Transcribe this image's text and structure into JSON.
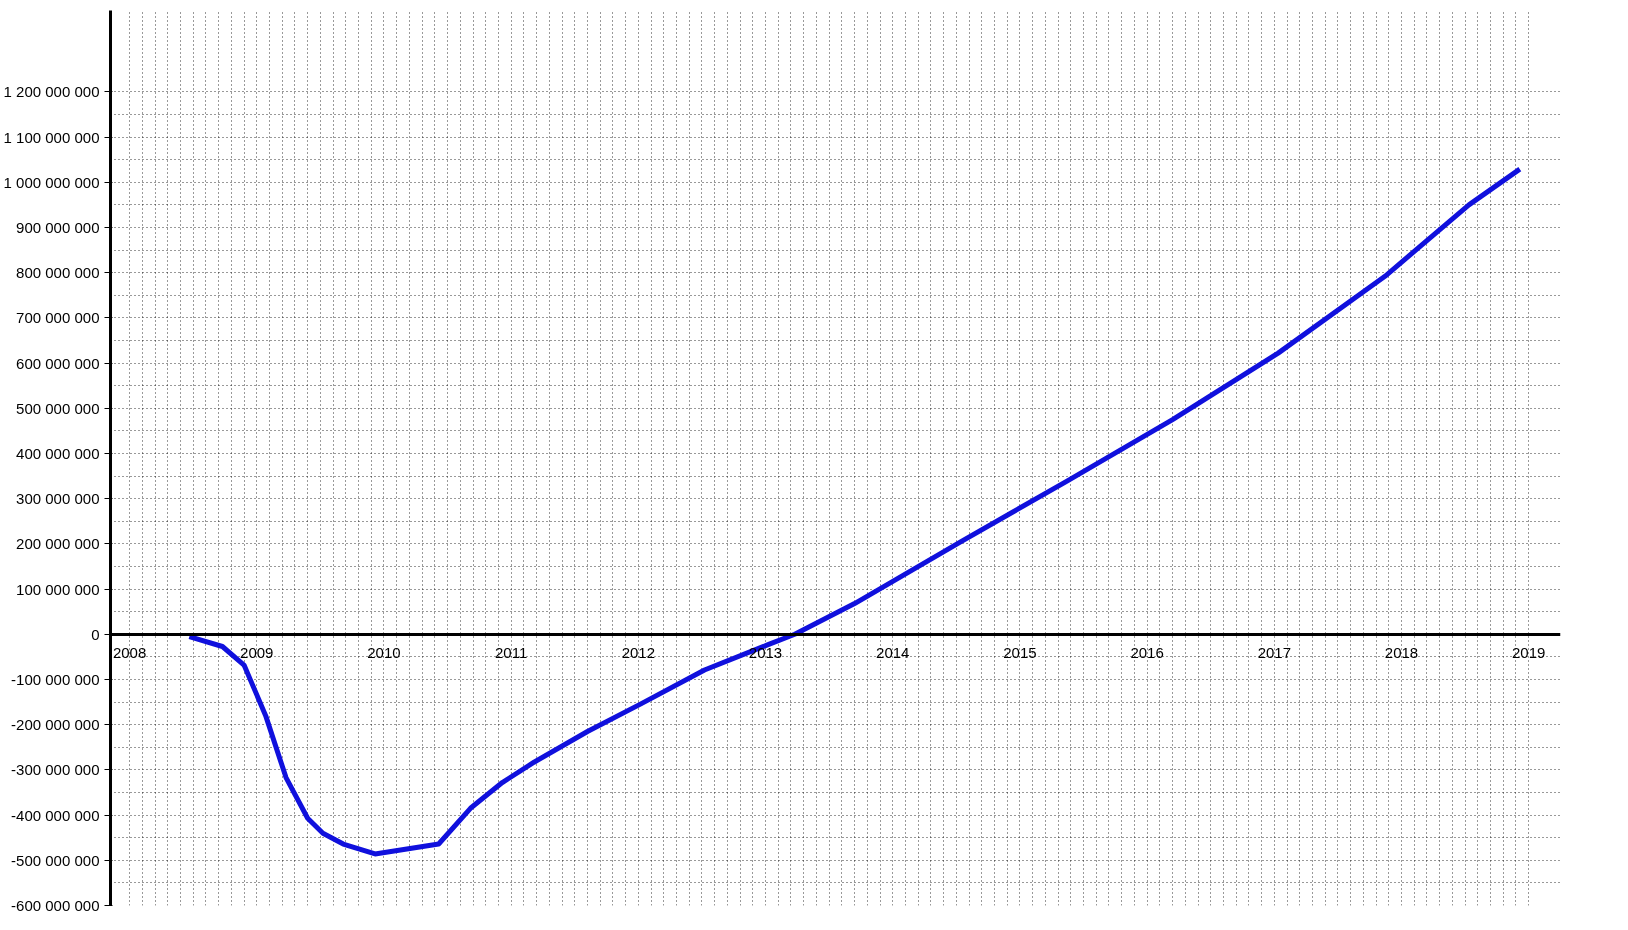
{
  "chart_data": {
    "type": "line",
    "x": [
      2008.47,
      2008.73,
      2008.9,
      2009.07,
      2009.23,
      2009.4,
      2009.52,
      2009.68,
      2009.93,
      2010.18,
      2010.43,
      2010.68,
      2010.93,
      2011.18,
      2011.6,
      2012.02,
      2012.52,
      2013.02,
      2013.23,
      2013.7,
      2014.53,
      2015.37,
      2016.2,
      2017.03,
      2017.87,
      2018.53,
      2018.93
    ],
    "series": [
      {
        "color": "#1010dd",
        "values": [
          -5000000,
          -27000000,
          -68000000,
          -180000000,
          -317000000,
          -407000000,
          -440000000,
          -464000000,
          -486000000,
          -475000000,
          -464000000,
          -385000000,
          -328000000,
          -283000000,
          -215000000,
          -154000000,
          -79000000,
          -23000000,
          0,
          68000000,
          204000000,
          339000000,
          475000000,
          622000000,
          792000000,
          950000000,
          1029000000
        ]
      }
    ],
    "xlim": [
      2007.85,
      2019.25
    ],
    "ylim": [
      -600000000,
      1380000000
    ],
    "xticks": [
      2008,
      2009,
      2010,
      2011,
      2012,
      2013,
      2014,
      2015,
      2016,
      2017,
      2018,
      2019
    ],
    "yticks": [
      {
        "value": -600000000,
        "label": "-600 000 000"
      },
      {
        "value": -500000000,
        "label": "-500 000 000"
      },
      {
        "value": -400000000,
        "label": "-400 000 000"
      },
      {
        "value": -300000000,
        "label": "-300 000 000"
      },
      {
        "value": -200000000,
        "label": "-200 000 000"
      },
      {
        "value": -100000000,
        "label": "-100 000 000"
      },
      0,
      {
        "value": 100000000,
        "label": "100 000 000"
      },
      {
        "value": 200000000,
        "label": "200 000 000"
      },
      {
        "value": 300000000,
        "label": "300 000 000"
      },
      {
        "value": 400000000,
        "label": "400 000 000"
      },
      {
        "value": 500000000,
        "label": "500 000 000"
      },
      {
        "value": 600000000,
        "label": "600 000 000"
      },
      {
        "value": 700000000,
        "label": "700 000 000"
      },
      {
        "value": 800000000,
        "label": "800 000 000"
      },
      {
        "value": 900000000,
        "label": "900 000 000"
      },
      {
        "value": 1000000000,
        "label": "1 000 000 000"
      },
      {
        "value": 1100000000,
        "label": "1 100 000 000"
      },
      {
        "value": 1200000000,
        "label": "1 200 000 000"
      }
    ],
    "grid": true,
    "line_style": "solid",
    "marker": "none"
  }
}
